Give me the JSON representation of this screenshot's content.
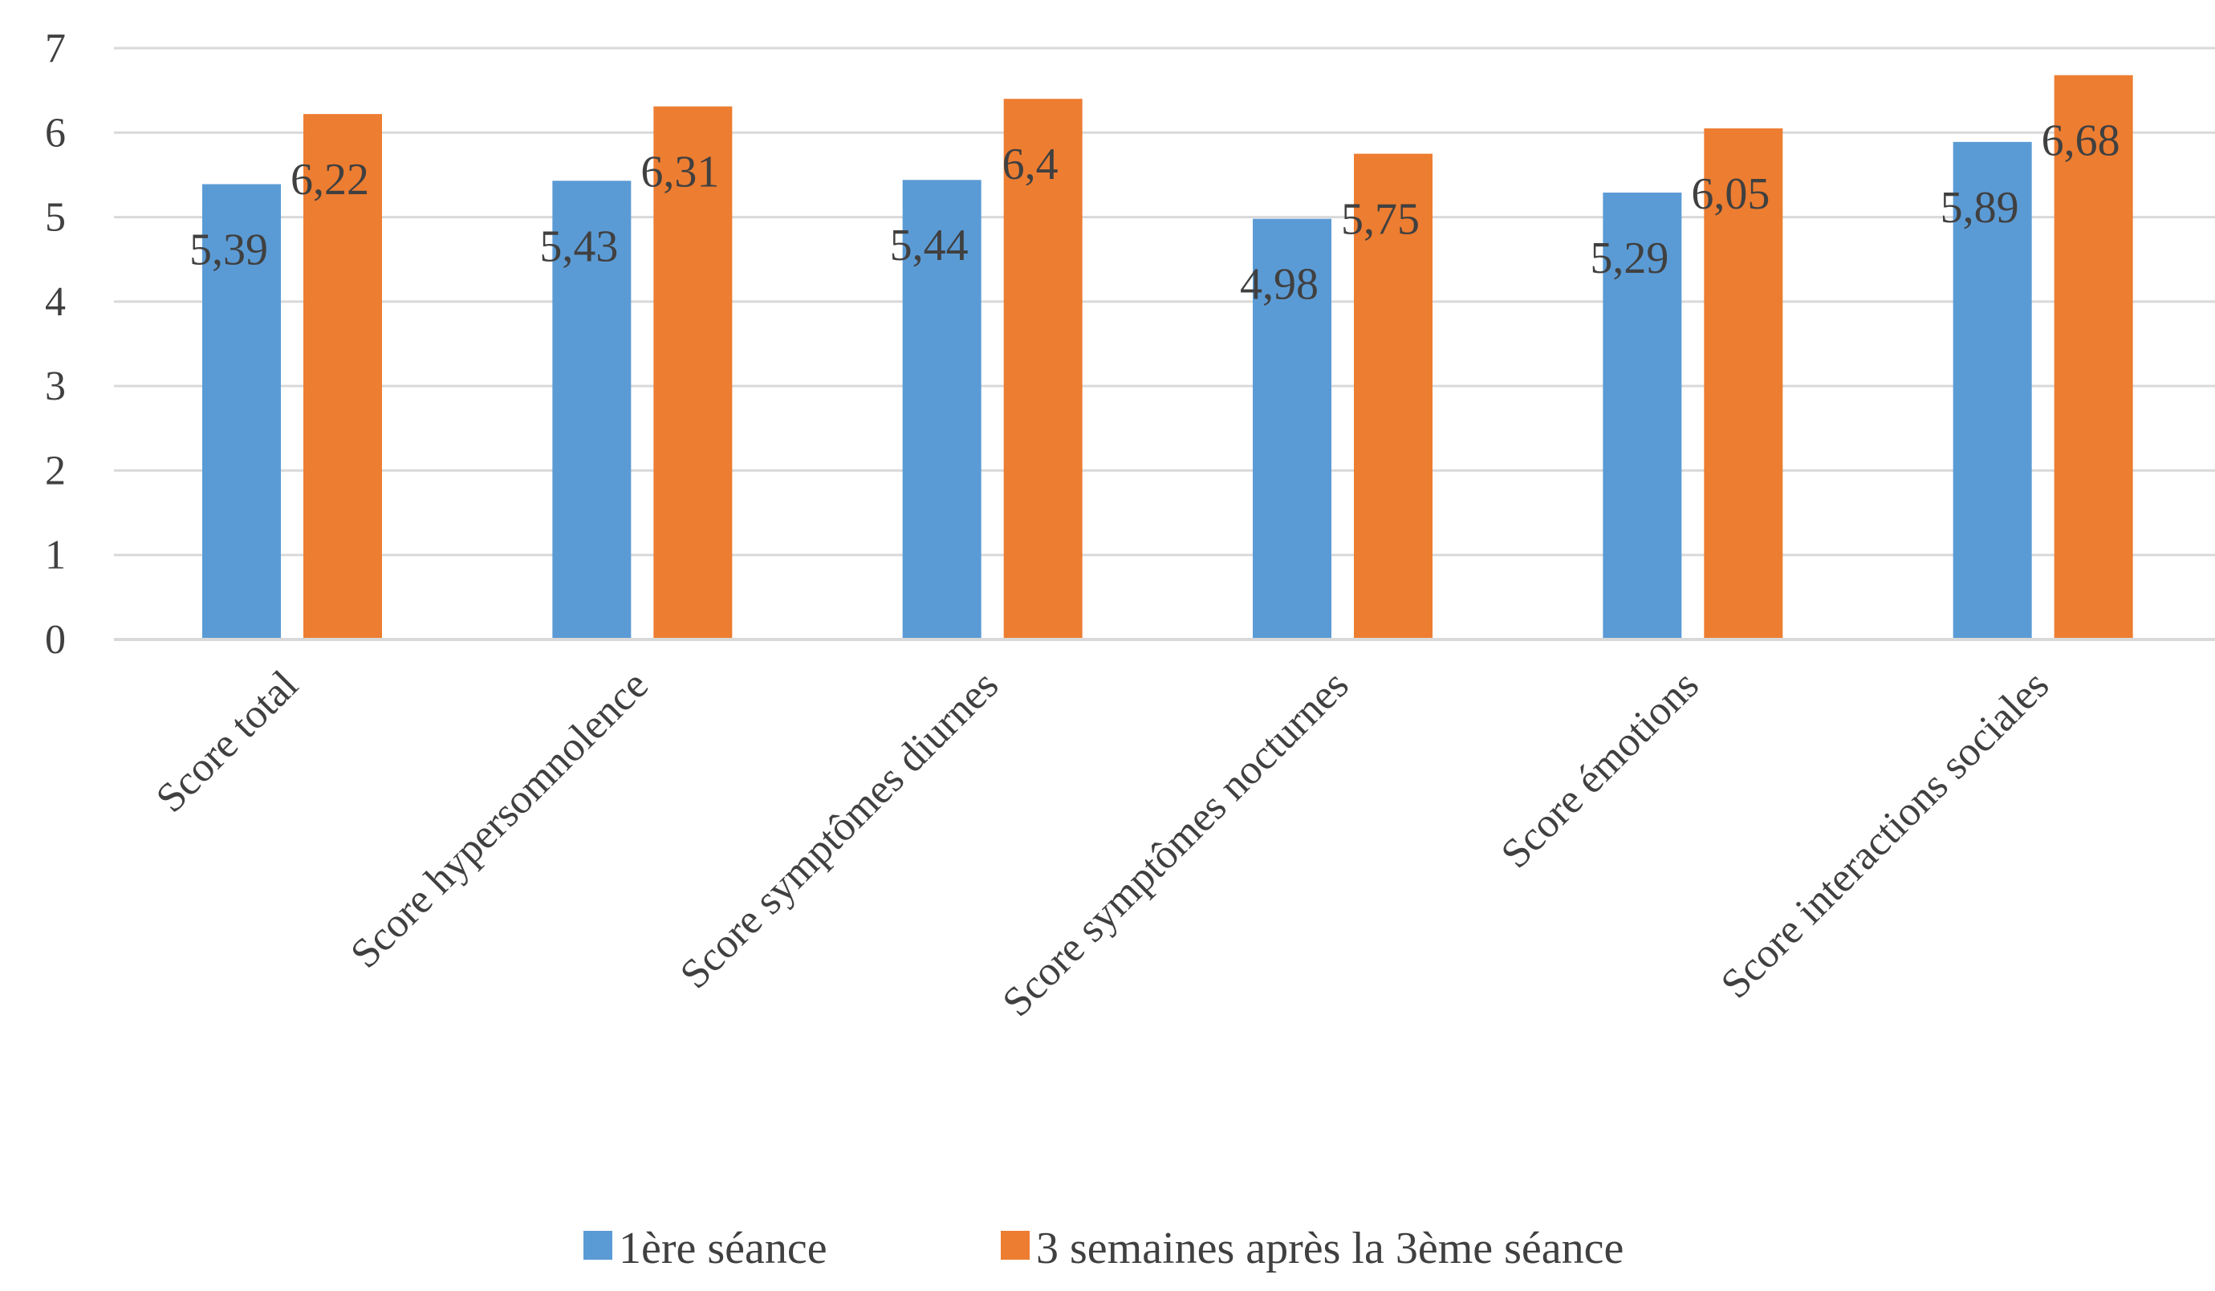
{
  "chart_data": {
    "type": "bar",
    "categories": [
      "Score total",
      "Score hypersomnolence",
      "Score symptômes diurnes",
      "Score symptômes nocturnes",
      "Score émotions",
      "Score interactions sociales"
    ],
    "series": [
      {
        "name": "1ère séance",
        "values": [
          5.39,
          5.43,
          5.44,
          4.98,
          5.29,
          5.89
        ],
        "labels": [
          "5,39",
          "5,43",
          "5,44",
          "4,98",
          "5,29",
          "5,89"
        ]
      },
      {
        "name": "3 semaines après la 3ème séance",
        "values": [
          6.22,
          6.31,
          6.4,
          5.75,
          6.05,
          6.68
        ],
        "labels": [
          "6,22",
          "6,31",
          "6,4",
          "5,75",
          "6,05",
          "6,68"
        ]
      }
    ],
    "y_ticks": [
      "0",
      "1",
      "2",
      "3",
      "4",
      "5",
      "6",
      "7"
    ],
    "ylim": [
      0,
      7
    ],
    "grid": true,
    "legend_position": "bottom",
    "colors": [
      "#5b9bd5",
      "#ed7d31"
    ]
  }
}
